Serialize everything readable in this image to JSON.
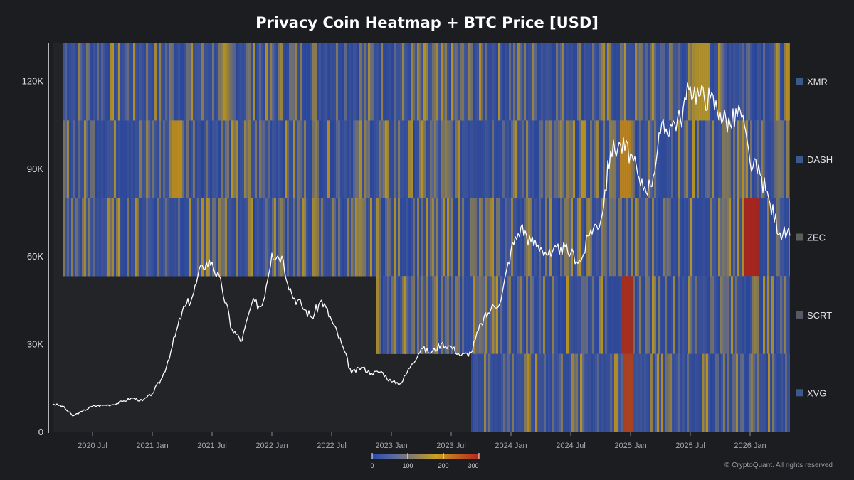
{
  "chart_data": {
    "type": "heatmap",
    "title": "Privacy Coin Heatmap + BTC Price [USD]",
    "xlabel": "",
    "ylabel": "",
    "x_tick_labels": [
      "2020 Jul",
      "2021 Jan",
      "2021 Jul",
      "2022 Jan",
      "2022 Jul",
      "2023 Jan",
      "2023 Jul",
      "2024 Jan",
      "2024 Jul",
      "2025 Jan",
      "2025 Jul",
      "2026 Jan"
    ],
    "x_range_months": [
      0,
      74
    ],
    "y_range": [
      0,
      133000
    ],
    "y_ticks": [
      0,
      30000,
      60000,
      90000,
      120000
    ],
    "y_tick_labels": [
      "0",
      "30K",
      "60K",
      "90K",
      "120K"
    ],
    "heatmap_rows": [
      {
        "name": "XMR",
        "start_month": 1.0,
        "color": "#3a5a8c"
      },
      {
        "name": "DASH",
        "start_month": 1.0,
        "color": "#3a5a8c"
      },
      {
        "name": "ZEC",
        "start_month": 1.0,
        "color": "#5a5f5a"
      },
      {
        "name": "SCRT",
        "start_month": 32.5,
        "color": "#555a66"
      },
      {
        "name": "XVG",
        "start_month": 42.0,
        "color": "#3a5a8c"
      }
    ],
    "heatmap_scale": {
      "min": 0,
      "max": 300,
      "tick_values": [
        0,
        100,
        200,
        300
      ],
      "tick_labels": [
        "0",
        "100",
        "200",
        "300"
      ],
      "colors": [
        "#2a4aa8",
        "#5a6aa0",
        "#8a8060",
        "#c8a020",
        "#c06020",
        "#b02820"
      ]
    },
    "hot_spots": [
      {
        "row": "ZEC",
        "month": 70.0,
        "width": 1.0,
        "value": 300
      },
      {
        "row": "SCRT",
        "month": 57.6,
        "width": 0.6,
        "value": 290
      },
      {
        "row": "XVG",
        "month": 57.6,
        "width": 0.7,
        "value": 270
      },
      {
        "row": "DASH",
        "month": 57.3,
        "width": 0.6,
        "value": 200
      },
      {
        "row": "DASH",
        "month": 12.3,
        "width": 0.6,
        "value": 190
      },
      {
        "row": "XMR",
        "month": 65.0,
        "width": 1.0,
        "value": 170
      }
    ],
    "series": [
      {
        "name": "BTC Price [USD]",
        "color": "#ffffff",
        "x_months": [
          0,
          1,
          2,
          3,
          4,
          5,
          6,
          7,
          8,
          9,
          10,
          11,
          12,
          13,
          14,
          15,
          16,
          17,
          18,
          19,
          20,
          21,
          22,
          23,
          24,
          25,
          26,
          27,
          28,
          29,
          30,
          31,
          32,
          33,
          34,
          35,
          36,
          37,
          38,
          39,
          40,
          41,
          42,
          43,
          44,
          45,
          46,
          47,
          48,
          49,
          50,
          51,
          52,
          53,
          54,
          55,
          56,
          57,
          58,
          59,
          60,
          61,
          62,
          63,
          64,
          65,
          66,
          67,
          68,
          69,
          70,
          71,
          72,
          73,
          74
        ],
        "values": [
          9500,
          8700,
          5400,
          7000,
          8700,
          9000,
          9200,
          10300,
          11500,
          10500,
          13000,
          18500,
          29000,
          41000,
          46000,
          57000,
          58000,
          49000,
          35000,
          31000,
          44000,
          43000,
          61000,
          60000,
          47000,
          43000,
          39000,
          45000,
          38000,
          30000,
          20000,
          22000,
          20000,
          20500,
          17000,
          16600,
          23000,
          28500,
          27000,
          30000,
          29000,
          26000,
          27000,
          37000,
          42000,
          45000,
          62000,
          70000,
          65000,
          63000,
          60000,
          63000,
          61000,
          58000,
          69000,
          72000,
          96000,
          98000,
          95000,
          84000,
          84000,
          102000,
          105000,
          107000,
          118000,
          115000,
          114000,
          109000,
          105000,
          110000,
          92000,
          88000,
          78000,
          68000,
          67000
        ]
      }
    ],
    "credit": "CryptoQuant. All rights reserved",
    "credit_symbol": "©"
  }
}
